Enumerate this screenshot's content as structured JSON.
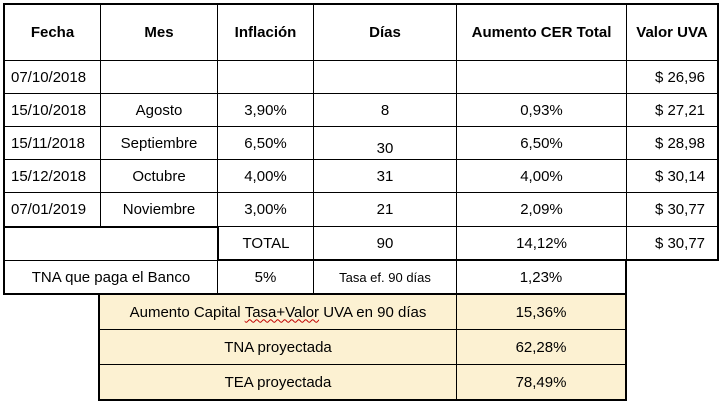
{
  "headers": {
    "fecha": "Fecha",
    "mes": "Mes",
    "inflacion": "Inflación",
    "dias": "Días",
    "aumento": "Aumento CER Total",
    "uva": "Valor UVA"
  },
  "rows": [
    {
      "fecha": "07/10/2018",
      "mes": "",
      "inflacion": "",
      "dias": "",
      "aumento": "",
      "uva": "$ 26,96"
    },
    {
      "fecha": "15/10/2018",
      "mes": "Agosto",
      "inflacion": "3,90%",
      "dias": "8",
      "aumento": "0,93%",
      "uva": "$ 27,21"
    },
    {
      "fecha": "15/11/2018",
      "mes": "Septiembre",
      "inflacion": "6,50%",
      "dias": "30",
      "aumento": "6,50%",
      "uva": "$ 28,98"
    },
    {
      "fecha": "15/12/2018",
      "mes": "Octubre",
      "inflacion": "4,00%",
      "dias": "31",
      "aumento": "4,00%",
      "uva": "$ 30,14"
    },
    {
      "fecha": "07/01/2019",
      "mes": "Noviembre",
      "inflacion": "3,00%",
      "dias": "21",
      "aumento": "2,09%",
      "uva": "$ 30,77"
    }
  ],
  "total": {
    "label": "TOTAL",
    "dias": "90",
    "aumento": "14,12%",
    "uva": "$ 30,77"
  },
  "tna_banco": {
    "label": "TNA que paga el Banco",
    "value": "5%",
    "tasa_label": "Tasa ef. 90 días",
    "tasa_value": "1,23%"
  },
  "aumento_capital": {
    "label_pre": "Aumento Capital ",
    "label_squiggle": "Tasa+Valor",
    "label_post": " UVA en 90 días",
    "value": "15,36%"
  },
  "tna_proyectada": {
    "label": "TNA proyectada",
    "value": "62,28%"
  },
  "tea_proyectada": {
    "label": "TEA proyectada",
    "value": "78,49%"
  }
}
